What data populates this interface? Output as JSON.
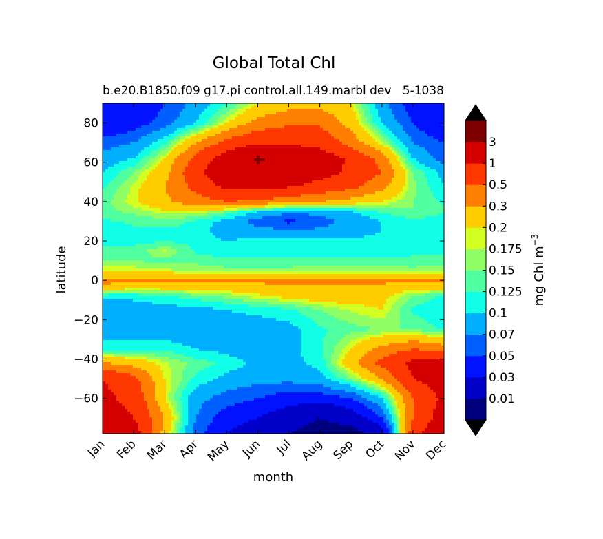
{
  "chart_data": {
    "type": "heatmap",
    "subtype": "filled-contour",
    "title": "Global Total Chl",
    "subtitle_left": "b.e20.B1850.f09 g17.pi control.all.149.marbl dev",
    "subtitle_right": "5-1038",
    "xlabel": "month",
    "ylabel": "latitude",
    "x_categories": [
      "Jan",
      "Feb",
      "Mar",
      "Apr",
      "May",
      "Jun",
      "Jul",
      "Aug",
      "Sep",
      "Oct",
      "Nov",
      "Dec"
    ],
    "y_ticks": [
      80,
      60,
      40,
      20,
      0,
      -20,
      -40,
      -60
    ],
    "y_tick_labels": [
      "80",
      "60",
      "40",
      "20",
      "0",
      "−20",
      "−40",
      "−60"
    ],
    "ylim": [
      -78,
      90
    ],
    "colorbar": {
      "label_main": "mg Chl m",
      "label_exp": "−3",
      "levels": [
        0.01,
        0.03,
        0.05,
        0.07,
        0.1,
        0.125,
        0.15,
        0.175,
        0.2,
        0.3,
        0.5,
        1,
        3
      ],
      "tick_labels": [
        "0.01",
        "0.03",
        "0.05",
        "0.07",
        "0.1",
        "0.125",
        "0.15",
        "0.175",
        "0.2",
        "0.3",
        "0.5",
        "1",
        "3"
      ],
      "colors": [
        "#00007f",
        "#0000c8",
        "#0012ff",
        "#0060ff",
        "#00b0ff",
        "#10ffe6",
        "#50ff9f",
        "#90ff66",
        "#d4ff23",
        "#ffcc00",
        "#ff8000",
        "#ff3700",
        "#d50000",
        "#7f0000"
      ],
      "extend": "both",
      "over_color": "#000000",
      "under_color": "#000000"
    },
    "lat_grid": [
      -78,
      -70,
      -60,
      -50,
      -42,
      -35,
      -25,
      -15,
      -8,
      -3,
      0,
      2,
      5,
      10,
      15,
      20,
      25,
      30,
      35,
      40,
      48,
      55,
      62,
      70,
      80,
      90
    ],
    "value_grid": [
      [
        2.0,
        1.5,
        0.25,
        0.06,
        0.03,
        0.02,
        0.01,
        0.005,
        0.005,
        0.02,
        0.8,
        2.0
      ],
      [
        1.5,
        1.0,
        0.3,
        0.07,
        0.04,
        0.03,
        0.02,
        0.01,
        0.02,
        0.05,
        0.5,
        1.5
      ],
      [
        1.2,
        0.8,
        0.2,
        0.08,
        0.06,
        0.05,
        0.04,
        0.04,
        0.05,
        0.1,
        0.5,
        1.2
      ],
      [
        1.0,
        0.6,
        0.2,
        0.12,
        0.09,
        0.08,
        0.08,
        0.09,
        0.15,
        0.3,
        1.0,
        1.5
      ],
      [
        0.3,
        0.25,
        0.18,
        0.14,
        0.12,
        0.09,
        0.09,
        0.11,
        0.25,
        0.6,
        1.2,
        1.2
      ],
      [
        0.12,
        0.12,
        0.12,
        0.1,
        0.09,
        0.08,
        0.09,
        0.12,
        0.2,
        0.35,
        0.5,
        0.4
      ],
      [
        0.08,
        0.08,
        0.08,
        0.08,
        0.08,
        0.08,
        0.09,
        0.12,
        0.14,
        0.15,
        0.15,
        0.12
      ],
      [
        0.08,
        0.08,
        0.09,
        0.09,
        0.1,
        0.11,
        0.12,
        0.15,
        0.18,
        0.2,
        0.12,
        0.1
      ],
      [
        0.11,
        0.11,
        0.12,
        0.14,
        0.16,
        0.19,
        0.22,
        0.24,
        0.24,
        0.22,
        0.15,
        0.12
      ],
      [
        0.28,
        0.25,
        0.25,
        0.26,
        0.26,
        0.26,
        0.27,
        0.28,
        0.28,
        0.27,
        0.25,
        0.26
      ],
      [
        0.35,
        0.33,
        0.32,
        0.32,
        0.33,
        0.35,
        0.38,
        0.38,
        0.36,
        0.35,
        0.33,
        0.34
      ],
      [
        0.26,
        0.25,
        0.25,
        0.24,
        0.23,
        0.22,
        0.22,
        0.22,
        0.22,
        0.22,
        0.22,
        0.24
      ],
      [
        0.19,
        0.19,
        0.18,
        0.17,
        0.16,
        0.16,
        0.16,
        0.17,
        0.17,
        0.17,
        0.16,
        0.17
      ],
      [
        0.15,
        0.15,
        0.14,
        0.14,
        0.13,
        0.13,
        0.13,
        0.13,
        0.13,
        0.13,
        0.13,
        0.13
      ],
      [
        0.13,
        0.13,
        0.18,
        0.12,
        0.11,
        0.11,
        0.11,
        0.11,
        0.11,
        0.11,
        0.12,
        0.12
      ],
      [
        0.12,
        0.12,
        0.12,
        0.12,
        0.1,
        0.11,
        0.11,
        0.11,
        0.11,
        0.11,
        0.11,
        0.11
      ],
      [
        0.11,
        0.12,
        0.12,
        0.12,
        0.08,
        0.08,
        0.075,
        0.075,
        0.08,
        0.1,
        0.11,
        0.11
      ],
      [
        0.12,
        0.13,
        0.14,
        0.12,
        0.09,
        0.06,
        0.045,
        0.06,
        0.08,
        0.1,
        0.12,
        0.11
      ],
      [
        0.14,
        0.16,
        0.19,
        0.2,
        0.15,
        0.1,
        0.08,
        0.08,
        0.1,
        0.13,
        0.15,
        0.13
      ],
      [
        0.14,
        0.19,
        0.27,
        0.4,
        0.5,
        0.45,
        0.35,
        0.3,
        0.25,
        0.2,
        0.15,
        0.12
      ],
      [
        0.12,
        0.18,
        0.3,
        0.6,
        1.2,
        1.3,
        1.1,
        0.8,
        0.6,
        0.35,
        0.16,
        0.1
      ],
      [
        0.1,
        0.15,
        0.25,
        0.8,
        2.0,
        2.2,
        1.8,
        1.3,
        0.9,
        0.5,
        0.15,
        0.09
      ],
      [
        0.08,
        0.1,
        0.2,
        0.6,
        1.5,
        3.5,
        2.0,
        1.5,
        0.9,
        0.4,
        0.1,
        0.06
      ],
      [
        0.06,
        0.07,
        0.12,
        0.3,
        0.6,
        0.9,
        0.9,
        0.8,
        0.4,
        0.18,
        0.07,
        0.05
      ],
      [
        0.03,
        0.04,
        0.06,
        0.1,
        0.2,
        0.35,
        0.45,
        0.45,
        0.25,
        0.1,
        0.05,
        0.03
      ],
      [
        0.03,
        0.03,
        0.05,
        0.08,
        0.12,
        0.2,
        0.25,
        0.25,
        0.2,
        0.08,
        0.04,
        0.03
      ]
    ]
  }
}
